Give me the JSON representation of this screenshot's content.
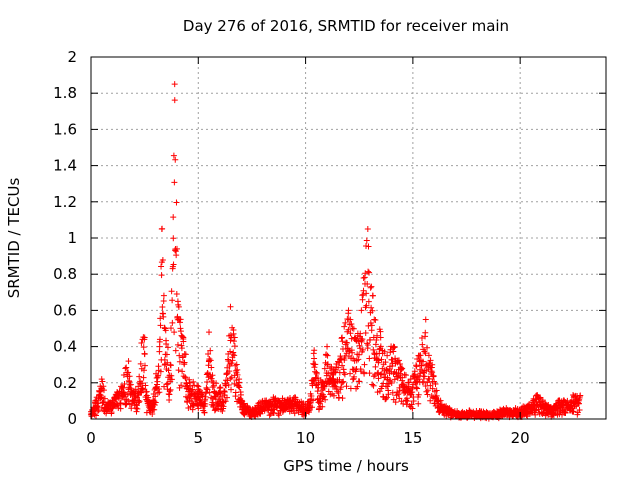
{
  "chart_data": {
    "type": "scatter",
    "title": "Day 276 of 2016, SRMTID for receiver main",
    "xlabel": "GPS time / hours",
    "ylabel": "SRMTID / TECUs",
    "xlim": [
      0,
      24
    ],
    "ylim": [
      0,
      2
    ],
    "x_ticks": [
      0,
      5,
      10,
      15,
      20
    ],
    "y_ticks": [
      0,
      0.2,
      0.4,
      0.6,
      0.8,
      1,
      1.2,
      1.4,
      1.6,
      1.8,
      2
    ],
    "x_tick_labels": [
      "0",
      "5",
      "10",
      "15",
      "20"
    ],
    "y_tick_labels": [
      "0",
      "0.2",
      "0.4",
      "0.6",
      "0.8",
      "1",
      "1.2",
      "1.4",
      "1.6",
      "1.8",
      "2"
    ],
    "grid": true,
    "marker": "+",
    "color": "#ff0000",
    "data_end_hours": 22.8,
    "profile": [
      [
        0.0,
        0.04
      ],
      [
        0.2,
        0.1
      ],
      [
        0.4,
        0.15
      ],
      [
        0.5,
        0.22
      ],
      [
        0.7,
        0.08
      ],
      [
        1.0,
        0.1
      ],
      [
        1.4,
        0.18
      ],
      [
        1.6,
        0.28
      ],
      [
        1.75,
        0.32
      ],
      [
        1.9,
        0.14
      ],
      [
        2.2,
        0.18
      ],
      [
        2.35,
        0.42
      ],
      [
        2.5,
        0.45
      ],
      [
        2.6,
        0.13
      ],
      [
        2.9,
        0.1
      ],
      [
        3.2,
        0.4
      ],
      [
        3.3,
        1.05
      ],
      [
        3.45,
        0.5
      ],
      [
        3.7,
        0.3
      ],
      [
        3.9,
        1.85
      ],
      [
        4.05,
        0.65
      ],
      [
        4.3,
        0.45
      ],
      [
        4.6,
        0.2
      ],
      [
        5.0,
        0.18
      ],
      [
        5.3,
        0.1
      ],
      [
        5.5,
        0.48
      ],
      [
        5.7,
        0.2
      ],
      [
        6.2,
        0.15
      ],
      [
        6.5,
        0.62
      ],
      [
        6.7,
        0.45
      ],
      [
        6.9,
        0.22
      ],
      [
        7.1,
        0.08
      ],
      [
        7.5,
        0.05
      ],
      [
        8.0,
        0.1
      ],
      [
        8.5,
        0.12
      ],
      [
        9.0,
        0.1
      ],
      [
        9.5,
        0.12
      ],
      [
        9.9,
        0.08
      ],
      [
        10.2,
        0.1
      ],
      [
        10.4,
        0.38
      ],
      [
        10.6,
        0.2
      ],
      [
        10.8,
        0.2
      ],
      [
        11.0,
        0.4
      ],
      [
        11.3,
        0.25
      ],
      [
        11.7,
        0.45
      ],
      [
        12.0,
        0.6
      ],
      [
        12.3,
        0.45
      ],
      [
        12.6,
        0.6
      ],
      [
        12.9,
        1.05
      ],
      [
        13.2,
        0.55
      ],
      [
        13.5,
        0.45
      ],
      [
        13.8,
        0.35
      ],
      [
        14.1,
        0.4
      ],
      [
        14.5,
        0.28
      ],
      [
        14.9,
        0.22
      ],
      [
        15.3,
        0.35
      ],
      [
        15.6,
        0.55
      ],
      [
        15.9,
        0.3
      ],
      [
        16.2,
        0.1
      ],
      [
        16.7,
        0.05
      ],
      [
        17.2,
        0.03
      ],
      [
        17.7,
        0.04
      ],
      [
        18.2,
        0.04
      ],
      [
        18.7,
        0.03
      ],
      [
        19.2,
        0.05
      ],
      [
        19.7,
        0.05
      ],
      [
        20.2,
        0.06
      ],
      [
        20.6,
        0.1
      ],
      [
        20.8,
        0.13
      ],
      [
        21.2,
        0.08
      ],
      [
        21.5,
        0.05
      ],
      [
        21.8,
        0.1
      ],
      [
        22.2,
        0.1
      ],
      [
        22.5,
        0.12
      ],
      [
        22.8,
        0.13
      ]
    ]
  }
}
